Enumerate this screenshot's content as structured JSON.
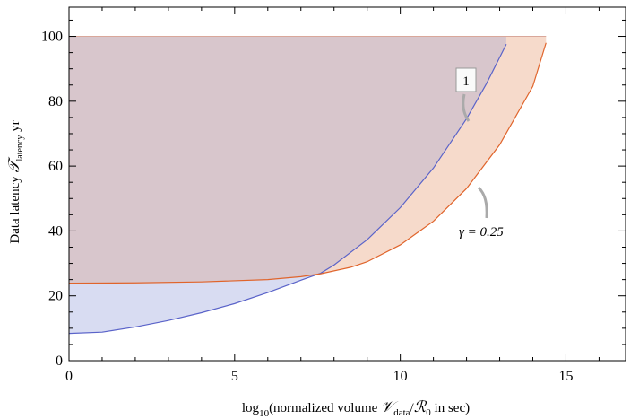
{
  "chart_data": {
    "type": "area",
    "xlim": [
      0,
      16.8
    ],
    "ylim": [
      0,
      109
    ],
    "x_ticks": [
      0,
      5,
      10,
      15
    ],
    "y_ticks": [
      0,
      20,
      40,
      60,
      80,
      100
    ],
    "x_tick_labels": [
      "0",
      "5",
      "10",
      "15"
    ],
    "y_tick_labels": [
      "0",
      "20",
      "40",
      "60",
      "80",
      "100"
    ],
    "ytop": 100,
    "xlabel": {
      "pre": "log",
      "sub1": "10",
      "mid": "(normalized volume ",
      "V": "𝒱",
      "sub2": "data",
      "slash": "/",
      "R": "ℛ",
      "sub3": "0",
      "post": " in sec)"
    },
    "ylabel": {
      "pre": "Data latency ",
      "T": "𝒯",
      "sub": "latency",
      "post": " yr"
    },
    "grid": false,
    "series": [
      {
        "gamma_label": "1",
        "line_color": "#5a63c9",
        "fill_color": "#d8dcf2",
        "x": [
          0,
          1,
          2,
          3,
          4,
          5,
          6,
          7,
          7.6,
          8,
          9,
          10,
          11,
          12,
          12.6,
          13.2
        ],
        "y": [
          8.4,
          8.8,
          10.4,
          12.4,
          14.8,
          17.6,
          21,
          24.8,
          27,
          29.5,
          37.3,
          47.2,
          59.4,
          74.6,
          85.4,
          97.6
        ]
      },
      {
        "gamma_label": "γ = 0.25",
        "line_color": "#e0642b",
        "fill_color": "#f6dacb",
        "x": [
          0,
          2,
          4,
          6,
          7,
          7.6,
          8.5,
          9,
          10,
          11,
          12,
          13,
          14,
          14.4
        ],
        "y": [
          23.9,
          24.0,
          24.3,
          25.0,
          25.9,
          26.8,
          28.8,
          30.5,
          35.7,
          43,
          53.1,
          66.6,
          84.6,
          98
        ]
      }
    ],
    "overlap_fill_color": "#d8c6cc"
  }
}
